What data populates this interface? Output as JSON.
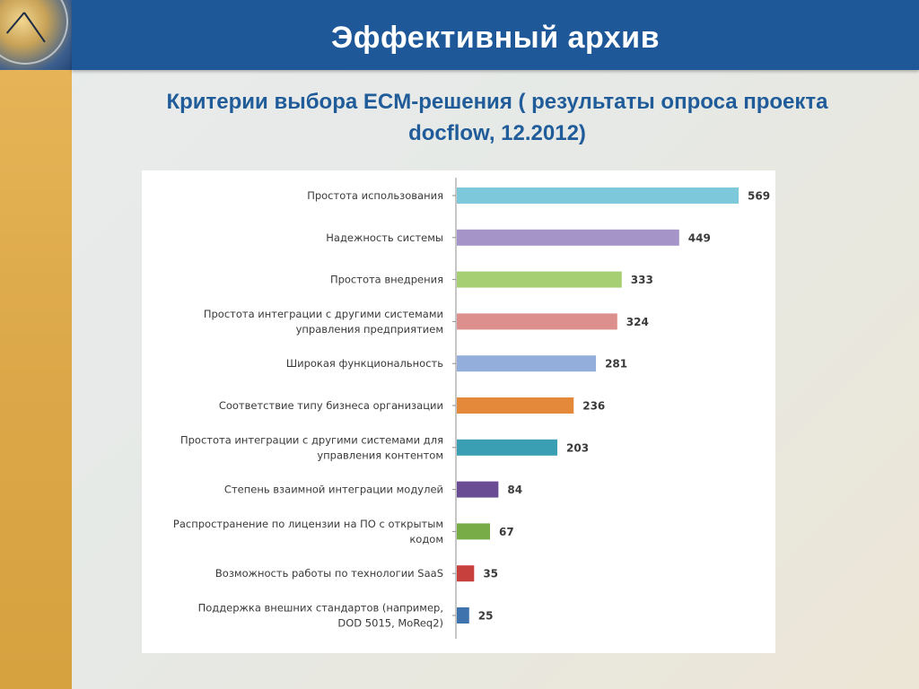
{
  "header": {
    "title": "Эффективный архив"
  },
  "subtitle": {
    "line1": "Критерии выбора ECM-решения ( результаты опроса проекта",
    "line2": "docflow, 12.2012)"
  },
  "chart_data": {
    "type": "bar",
    "orientation": "horizontal",
    "categories": [
      [
        "Простота использования"
      ],
      [
        "Надежность системы"
      ],
      [
        "Простота внедрения"
      ],
      [
        "Простота интеграции с другими системами",
        "управления предприятием"
      ],
      [
        "Широкая функциональность"
      ],
      [
        "Соответствие типу бизнеса организации"
      ],
      [
        "Простота интеграции с другими системами для",
        "управления контентом"
      ],
      [
        "Степень взаимной интеграции модулей"
      ],
      [
        "Распространение по лицензии на ПО с открытым",
        "кодом"
      ],
      [
        "Возможность работы по технологии SaaS"
      ],
      [
        "Поддержка внешних стандартов (например,",
        "DOD 5015, MoReq2)"
      ]
    ],
    "values": [
      569,
      449,
      333,
      324,
      281,
      236,
      203,
      84,
      67,
      35,
      25
    ],
    "colors": [
      "#7ec8dc",
      "#a594c8",
      "#a5cf72",
      "#dc8f8c",
      "#94aedb",
      "#e4893a",
      "#3b9fb3",
      "#6a4c94",
      "#78ac47",
      "#c8403d",
      "#3e73ad"
    ],
    "xlim": [
      0,
      569
    ],
    "grid": false,
    "legend": "none",
    "title": "",
    "xlabel": "",
    "ylabel": ""
  }
}
